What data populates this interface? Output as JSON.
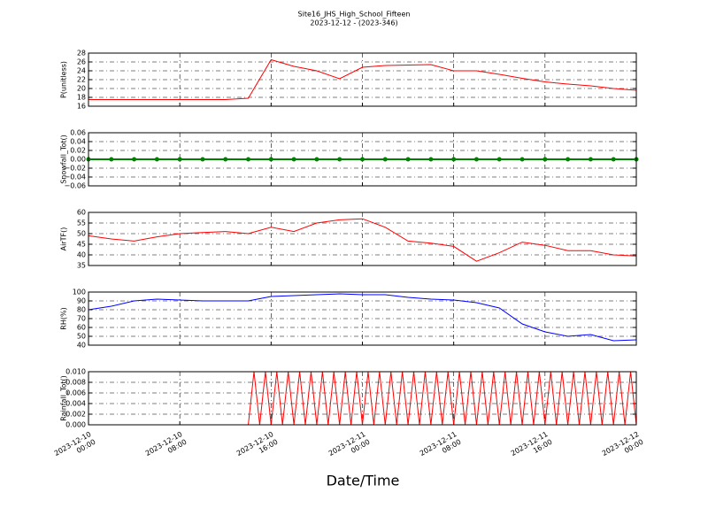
{
  "title": "Site16_JHS_High_School_Fifteen",
  "subtitle": "2023-12-12 - (2023-346)",
  "xlabel": "Date/Time",
  "chart_data": [
    {
      "type": "line",
      "ylabel": "P(unitless)",
      "color": "#ff0000",
      "grid": true,
      "xlim": [
        "2023-12-10 00:00",
        "2023-12-12 00:00"
      ],
      "ylim": [
        16,
        28
      ],
      "yticks": [
        16,
        18,
        20,
        22,
        24,
        26,
        28
      ],
      "x": [
        "2023-12-10 00:00",
        "2023-12-10 02:00",
        "2023-12-10 04:00",
        "2023-12-10 06:00",
        "2023-12-10 08:00",
        "2023-12-10 10:00",
        "2023-12-10 12:00",
        "2023-12-10 14:00",
        "2023-12-10 16:00",
        "2023-12-10 18:00",
        "2023-12-10 20:00",
        "2023-12-10 22:00",
        "2023-12-11 00:00",
        "2023-12-11 02:00",
        "2023-12-11 04:00",
        "2023-12-11 06:00",
        "2023-12-11 08:00",
        "2023-12-11 10:00",
        "2023-12-11 12:00",
        "2023-12-11 14:00",
        "2023-12-11 16:00",
        "2023-12-11 18:00",
        "2023-12-11 20:00",
        "2023-12-11 22:00",
        "2023-12-12 00:00"
      ],
      "values": [
        17.5,
        17.5,
        17.5,
        17.5,
        17.5,
        17.5,
        17.5,
        17.8,
        26.5,
        25,
        24,
        22.2,
        24.8,
        25.2,
        25.3,
        25.4,
        24,
        24,
        23.2,
        22.3,
        21.5,
        21,
        20.6,
        20,
        19.6
      ]
    },
    {
      "type": "line",
      "ylabel": "Snowfall_Tot()",
      "color": "#008000",
      "grid": true,
      "markers": true,
      "xlim": [
        "2023-12-10 00:00",
        "2023-12-12 00:00"
      ],
      "ylim": [
        -0.06,
        0.06
      ],
      "yticks": [
        {
          "value": -0.06,
          "label": "−0.06"
        },
        {
          "value": -0.04,
          "label": "−0.04"
        },
        {
          "value": -0.02,
          "label": "−0.02"
        },
        {
          "value": 0,
          "label": "0.00"
        },
        0.02,
        0.04,
        0.06
      ],
      "x": [
        "2023-12-10 00:00",
        "2023-12-10 02:00",
        "2023-12-10 04:00",
        "2023-12-10 06:00",
        "2023-12-10 08:00",
        "2023-12-10 10:00",
        "2023-12-10 12:00",
        "2023-12-10 14:00",
        "2023-12-10 16:00",
        "2023-12-10 18:00",
        "2023-12-10 20:00",
        "2023-12-10 22:00",
        "2023-12-11 00:00",
        "2023-12-11 02:00",
        "2023-12-11 04:00",
        "2023-12-11 06:00",
        "2023-12-11 08:00",
        "2023-12-11 10:00",
        "2023-12-11 12:00",
        "2023-12-11 14:00",
        "2023-12-11 16:00",
        "2023-12-11 18:00",
        "2023-12-11 20:00",
        "2023-12-11 22:00",
        "2023-12-12 00:00"
      ],
      "values": [
        0,
        0,
        0,
        0,
        0,
        0,
        0,
        0,
        0,
        0,
        0,
        0,
        0,
        0,
        0,
        0,
        0,
        0,
        0,
        0,
        0,
        0,
        0,
        0,
        0
      ]
    },
    {
      "type": "line",
      "ylabel": "AirTF()",
      "color": "#ff0000",
      "grid": true,
      "xlim": [
        "2023-12-10 00:00",
        "2023-12-12 00:00"
      ],
      "ylim": [
        35,
        60
      ],
      "yticks": [
        35,
        40,
        45,
        50,
        55,
        60
      ],
      "x": [
        "2023-12-10 00:00",
        "2023-12-10 02:00",
        "2023-12-10 04:00",
        "2023-12-10 06:00",
        "2023-12-10 08:00",
        "2023-12-10 10:00",
        "2023-12-10 12:00",
        "2023-12-10 14:00",
        "2023-12-10 16:00",
        "2023-12-10 18:00",
        "2023-12-10 20:00",
        "2023-12-10 22:00",
        "2023-12-11 00:00",
        "2023-12-11 02:00",
        "2023-12-11 04:00",
        "2023-12-11 06:00",
        "2023-12-11 08:00",
        "2023-12-11 10:00",
        "2023-12-11 12:00",
        "2023-12-11 14:00",
        "2023-12-11 16:00",
        "2023-12-11 18:00",
        "2023-12-11 20:00",
        "2023-12-11 22:00",
        "2023-12-12 00:00"
      ],
      "values": [
        49,
        47.5,
        46.5,
        48.5,
        50,
        50.5,
        51,
        50,
        53,
        51,
        55,
        56.5,
        57,
        53,
        46.5,
        45.5,
        44,
        37,
        41,
        46,
        44.5,
        42,
        42,
        40,
        39.5
      ]
    },
    {
      "type": "line",
      "ylabel": "RH(%)",
      "color": "#0000ff",
      "grid": true,
      "xlim": [
        "2023-12-10 00:00",
        "2023-12-12 00:00"
      ],
      "ylim": [
        40,
        100
      ],
      "yticks": [
        40,
        50,
        60,
        70,
        80,
        90,
        100
      ],
      "x": [
        "2023-12-10 00:00",
        "2023-12-10 02:00",
        "2023-12-10 04:00",
        "2023-12-10 06:00",
        "2023-12-10 08:00",
        "2023-12-10 10:00",
        "2023-12-10 12:00",
        "2023-12-10 14:00",
        "2023-12-10 16:00",
        "2023-12-10 18:00",
        "2023-12-10 20:00",
        "2023-12-10 22:00",
        "2023-12-11 00:00",
        "2023-12-11 02:00",
        "2023-12-11 04:00",
        "2023-12-11 06:00",
        "2023-12-11 08:00",
        "2023-12-11 10:00",
        "2023-12-11 12:00",
        "2023-12-11 14:00",
        "2023-12-11 16:00",
        "2023-12-11 18:00",
        "2023-12-11 20:00",
        "2023-12-11 22:00",
        "2023-12-12 00:00"
      ],
      "values": [
        80,
        84,
        90,
        92,
        91,
        90,
        90,
        90,
        95,
        96,
        97,
        98,
        97,
        97,
        94,
        92,
        91,
        88,
        82,
        64,
        55,
        50,
        52,
        45,
        46
      ]
    },
    {
      "type": "line",
      "ylabel": "Rainfall_Tot()",
      "color": "#ff0000",
      "grid": true,
      "xlim": [
        "2023-12-10 00:00",
        "2023-12-12 00:00"
      ],
      "ylim": [
        0,
        0.01
      ],
      "yticks": [
        {
          "value": 0,
          "label": "0.000"
        },
        {
          "value": 0.002,
          "label": "0.002"
        },
        {
          "value": 0.004,
          "label": "0.004"
        },
        {
          "value": 0.006,
          "label": "0.006"
        },
        {
          "value": 0.008,
          "label": "0.008"
        },
        {
          "value": 0.01,
          "label": "0.010"
        }
      ],
      "xticks": [
        {
          "value": "2023-12-10 00:00",
          "label": "2023-12-10\n00:00"
        },
        {
          "value": "2023-12-10 08:00",
          "label": "2023-12-10\n08:00"
        },
        {
          "value": "2023-12-10 16:00",
          "label": "2023-12-10\n16:00"
        },
        {
          "value": "2023-12-11 00:00",
          "label": "2023-12-11\n00:00"
        },
        {
          "value": "2023-12-11 08:00",
          "label": "2023-12-11\n08:00"
        },
        {
          "value": "2023-12-11 16:00",
          "label": "2023-12-11\n16:00"
        },
        {
          "value": "2023-12-12 00:00",
          "label": "2023-12-12\n00:00"
        }
      ],
      "x": [
        "2023-12-10 00:00",
        "2023-12-10 14:00",
        "2023-12-10 14:30",
        "2023-12-10 15:00",
        "2023-12-10 15:30",
        "2023-12-10 16:00",
        "2023-12-10 16:30",
        "2023-12-10 17:00",
        "2023-12-10 17:30",
        "2023-12-10 18:00",
        "2023-12-10 18:30",
        "2023-12-10 19:00",
        "2023-12-10 19:30",
        "2023-12-10 20:00",
        "2023-12-10 20:30",
        "2023-12-10 21:00",
        "2023-12-10 21:30",
        "2023-12-10 22:00",
        "2023-12-10 22:30",
        "2023-12-10 23:00",
        "2023-12-10 23:30",
        "2023-12-11 00:00",
        "2023-12-11 00:30",
        "2023-12-11 01:00",
        "2023-12-11 01:30",
        "2023-12-11 02:00",
        "2023-12-11 02:30",
        "2023-12-11 03:00",
        "2023-12-11 03:30",
        "2023-12-11 04:00",
        "2023-12-11 04:30",
        "2023-12-11 05:00",
        "2023-12-11 05:30",
        "2023-12-11 06:00",
        "2023-12-11 06:30",
        "2023-12-11 07:00",
        "2023-12-11 07:30",
        "2023-12-11 08:00",
        "2023-12-11 08:30",
        "2023-12-11 09:00",
        "2023-12-11 09:30",
        "2023-12-11 10:00",
        "2023-12-11 10:30",
        "2023-12-11 11:00",
        "2023-12-11 11:30",
        "2023-12-11 12:00",
        "2023-12-11 12:30",
        "2023-12-11 13:00",
        "2023-12-11 13:30",
        "2023-12-11 14:00",
        "2023-12-11 14:30",
        "2023-12-11 15:00",
        "2023-12-11 15:30",
        "2023-12-11 16:00",
        "2023-12-11 16:30",
        "2023-12-11 17:00",
        "2023-12-11 17:30",
        "2023-12-11 18:00",
        "2023-12-11 18:30",
        "2023-12-11 19:00",
        "2023-12-11 19:30",
        "2023-12-11 20:00",
        "2023-12-11 20:30",
        "2023-12-11 21:00",
        "2023-12-11 21:30",
        "2023-12-11 22:00",
        "2023-12-11 22:30",
        "2023-12-11 23:00",
        "2023-12-11 23:30",
        "2023-12-12 00:00"
      ],
      "values": [
        0,
        0,
        0.01,
        0,
        0.01,
        0,
        0.01,
        0,
        0.01,
        0,
        0.01,
        0,
        0.01,
        0,
        0.01,
        0,
        0.01,
        0,
        0.01,
        0,
        0.01,
        0,
        0.01,
        0,
        0.01,
        0,
        0.01,
        0,
        0.01,
        0,
        0.01,
        0,
        0.01,
        0,
        0.01,
        0,
        0.01,
        0,
        0.01,
        0,
        0.01,
        0,
        0.01,
        0,
        0.01,
        0,
        0.01,
        0,
        0.01,
        0,
        0.01,
        0,
        0.01,
        0,
        0.01,
        0,
        0.01,
        0,
        0.01,
        0,
        0.01,
        0,
        0.01,
        0,
        0.01,
        0,
        0.01,
        0,
        0.01,
        0
      ]
    }
  ]
}
